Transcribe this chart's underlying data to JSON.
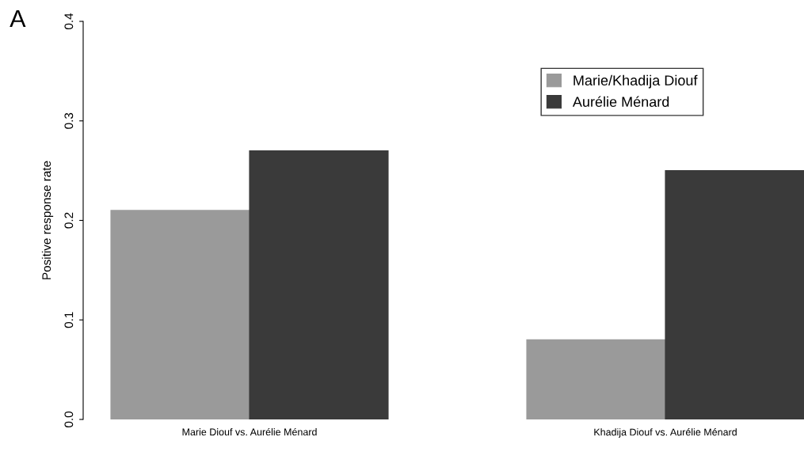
{
  "chart_data": {
    "type": "bar",
    "ylabel": "Positive response rate",
    "annotations": [
      "A"
    ],
    "categories": [
      "Marie Diouf vs. Aurélie Ménard",
      "Khadija Diouf vs. Aurélie Ménard"
    ],
    "series": [
      {
        "name": "Marie/Khadija Diouf",
        "color": "#9a9a9a",
        "values": [
          0.21,
          0.08
        ]
      },
      {
        "name": "Aurélie Ménard",
        "color": "#3a3a3a",
        "values": [
          0.27,
          0.25
        ]
      }
    ],
    "ylim": [
      0,
      0.4
    ],
    "yticks": [
      {
        "value": 0,
        "label": "0.0"
      },
      0.1,
      0.2,
      0.3,
      0.4
    ],
    "grid": false,
    "legend": "top right"
  }
}
